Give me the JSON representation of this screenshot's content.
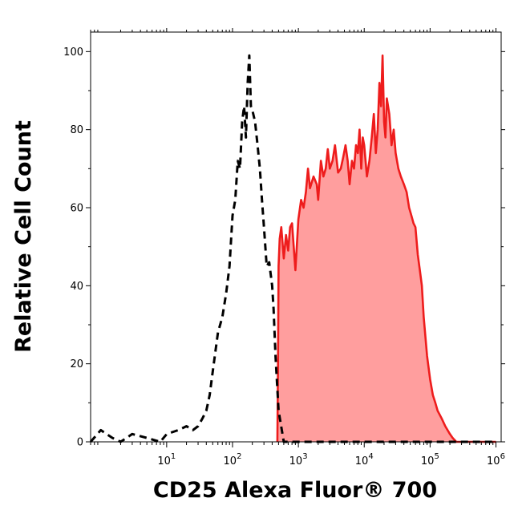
{
  "chart_data": {
    "type": "area",
    "title": "",
    "xlabel": "CD25 Alexa Fluor® 700",
    "ylabel": "Relative Cell Count",
    "x_scale": "log",
    "xlim": [
      0.7,
      1200000
    ],
    "ylim": [
      0,
      105
    ],
    "grid": false,
    "legend": "none",
    "x_ticks": [
      {
        "value": 10,
        "base": "10",
        "exp": "1"
      },
      {
        "value": 100,
        "base": "10",
        "exp": "2"
      },
      {
        "value": 1000,
        "base": "10",
        "exp": "3"
      },
      {
        "value": 10000,
        "base": "10",
        "exp": "4"
      },
      {
        "value": 100000,
        "base": "10",
        "exp": "5"
      },
      {
        "value": 1000000,
        "base": "10",
        "exp": "6"
      }
    ],
    "y_ticks": [
      0,
      20,
      40,
      60,
      80,
      100
    ],
    "series": [
      {
        "style": "dashed-outline",
        "color": "#000000",
        "x": [
          0.7,
          1,
          1.5,
          2,
          3,
          5,
          8,
          10,
          15,
          20,
          25,
          30,
          35,
          40,
          45,
          50,
          60,
          70,
          80,
          90,
          100,
          110,
          120,
          130,
          140,
          150,
          160,
          170,
          180,
          190,
          200,
          220,
          240,
          260,
          280,
          300,
          330,
          360,
          400,
          420,
          450,
          500,
          600,
          1000,
          10000,
          100000,
          1000000
        ],
        "values": [
          0,
          3,
          1,
          0,
          2,
          1,
          0,
          2,
          3,
          4,
          3,
          4,
          6,
          8,
          12,
          18,
          28,
          32,
          38,
          45,
          58,
          62,
          72,
          70,
          82,
          86,
          78,
          92,
          99,
          86,
          85,
          82,
          76,
          70,
          62,
          55,
          45,
          46,
          40,
          34,
          22,
          8,
          0,
          0,
          0,
          0,
          0
        ]
      },
      {
        "style": "filled",
        "color": "#ee1c1c",
        "fill": "#ff9e9e",
        "x": [
          480,
          490,
          500,
          520,
          550,
          600,
          650,
          700,
          750,
          800,
          900,
          1000,
          1100,
          1200,
          1300,
          1400,
          1500,
          1700,
          1900,
          2000,
          2200,
          2400,
          2600,
          2800,
          3000,
          3300,
          3600,
          4000,
          4400,
          4800,
          5200,
          5600,
          6000,
          6500,
          7000,
          7500,
          8000,
          8500,
          9000,
          9500,
          10000,
          11000,
          12000,
          13000,
          14000,
          15000,
          16000,
          17000,
          18000,
          19000,
          20000,
          21000,
          22000,
          24000,
          26000,
          28000,
          30000,
          33000,
          36000,
          40000,
          44000,
          48000,
          52000,
          56000,
          60000,
          65000,
          70000,
          75000,
          80000,
          90000,
          100000,
          110000,
          120000,
          130000,
          150000,
          170000,
          200000,
          220000,
          250000,
          300000,
          400000,
          1000000
        ],
        "values": [
          0,
          20,
          45,
          52,
          55,
          47,
          53,
          49,
          55,
          56,
          44,
          57,
          62,
          60,
          64,
          70,
          65,
          68,
          66,
          62,
          72,
          68,
          70,
          75,
          70,
          72,
          76,
          69,
          70,
          73,
          76,
          72,
          66,
          72,
          70,
          76,
          74,
          80,
          70,
          78,
          76,
          68,
          72,
          78,
          84,
          74,
          80,
          92,
          86,
          99,
          82,
          78,
          88,
          84,
          76,
          80,
          74,
          70,
          68,
          66,
          64,
          60,
          58,
          56,
          55,
          48,
          44,
          40,
          32,
          22,
          16,
          12,
          10,
          8,
          6,
          4,
          2,
          1,
          0,
          0,
          0,
          0
        ]
      }
    ]
  }
}
